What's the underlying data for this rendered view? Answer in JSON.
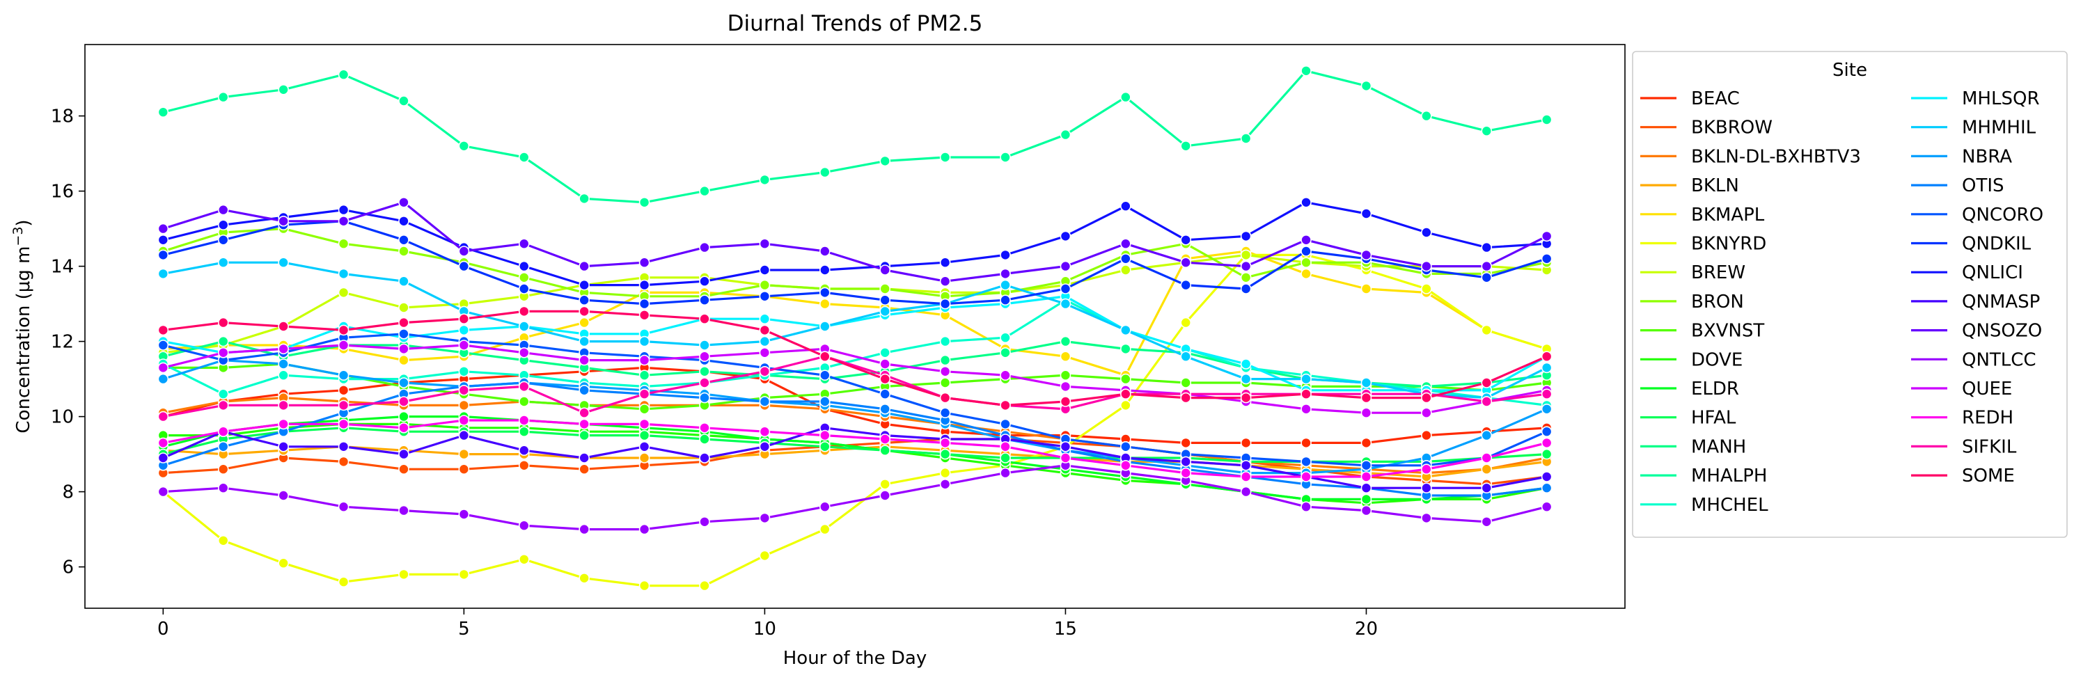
{
  "chart_data": {
    "type": "line",
    "title": "Diurnal Trends of PM2.5",
    "xlabel": "Hour of the Day",
    "ylabel_prefix": "Concentration (μg m",
    "ylabel_sup": "−3",
    "ylabel_suffix": ")",
    "xlim": [
      -1.3,
      24.3
    ],
    "ylim": [
      4.9,
      19.9
    ],
    "xticks": [
      0,
      5,
      10,
      15,
      20
    ],
    "yticks": [
      6,
      8,
      10,
      12,
      14,
      16,
      18
    ],
    "grid": false,
    "legend": {
      "title": "Site",
      "placement": "outside-right",
      "columns": 2
    },
    "x": [
      0,
      1,
      2,
      3,
      4,
      5,
      6,
      7,
      8,
      9,
      10,
      11,
      12,
      13,
      14,
      15,
      16,
      17,
      18,
      19,
      20,
      21,
      22,
      23
    ],
    "series": [
      {
        "name": "BEAC",
        "color": "#ff2a00",
        "values": [
          10.0,
          10.4,
          10.6,
          10.7,
          10.9,
          11.0,
          11.1,
          11.2,
          11.3,
          11.2,
          11.0,
          10.2,
          9.8,
          9.6,
          9.5,
          9.5,
          9.4,
          9.3,
          9.3,
          9.3,
          9.3,
          9.5,
          9.6,
          9.7
        ]
      },
      {
        "name": "BKBROW",
        "color": "#ff4f00",
        "values": [
          8.5,
          8.6,
          8.9,
          8.8,
          8.6,
          8.6,
          8.7,
          8.6,
          8.7,
          8.8,
          9.1,
          9.2,
          9.3,
          9.4,
          9.4,
          9.3,
          9.2,
          9.0,
          8.8,
          8.6,
          8.4,
          8.3,
          8.2,
          8.4
        ]
      },
      {
        "name": "BKLN-DL-BXHBTV3",
        "color": "#ff7a00",
        "values": [
          10.1,
          10.4,
          10.5,
          10.4,
          10.3,
          10.3,
          10.4,
          10.3,
          10.3,
          10.3,
          10.3,
          10.2,
          10.0,
          9.8,
          9.6,
          9.4,
          9.2,
          9.0,
          8.8,
          8.7,
          8.6,
          8.5,
          8.6,
          8.9
        ]
      },
      {
        "name": "BKLN",
        "color": "#ffaa00",
        "values": [
          9.1,
          9.0,
          9.1,
          9.2,
          9.1,
          9.0,
          9.0,
          8.9,
          8.9,
          8.9,
          9.0,
          9.1,
          9.2,
          9.1,
          9.0,
          8.9,
          8.8,
          8.8,
          8.7,
          8.6,
          8.5,
          8.4,
          8.6,
          8.8
        ]
      },
      {
        "name": "BKMAPL",
        "color": "#ffe100",
        "values": [
          11.8,
          11.9,
          11.9,
          11.8,
          11.5,
          11.6,
          12.1,
          12.5,
          13.3,
          13.3,
          13.2,
          13.0,
          12.9,
          12.7,
          11.8,
          11.6,
          11.1,
          14.2,
          14.4,
          13.8,
          13.4,
          13.3,
          12.3,
          11.8
        ]
      },
      {
        "name": "BKNYRD",
        "color": "#eeff00",
        "values": [
          8.0,
          6.7,
          6.1,
          5.6,
          5.8,
          5.8,
          6.2,
          5.7,
          5.5,
          5.5,
          6.3,
          7.0,
          8.2,
          8.5,
          8.7,
          9.2,
          10.3,
          12.5,
          14.3,
          14.3,
          13.9,
          13.4,
          12.3,
          11.8
        ]
      },
      {
        "name": "BREW",
        "color": "#c8ff00",
        "values": [
          11.7,
          11.9,
          12.4,
          13.3,
          12.9,
          13.0,
          13.2,
          13.5,
          13.7,
          13.7,
          13.5,
          13.4,
          13.4,
          13.3,
          13.3,
          13.5,
          13.9,
          14.1,
          14.3,
          14.1,
          14.0,
          14.0,
          14.0,
          13.9
        ]
      },
      {
        "name": "BRON",
        "color": "#8fff00",
        "values": [
          14.4,
          14.9,
          15.0,
          14.6,
          14.4,
          14.1,
          13.7,
          13.3,
          13.2,
          13.2,
          13.5,
          13.4,
          13.4,
          13.2,
          13.3,
          13.6,
          14.3,
          14.6,
          13.7,
          14.1,
          14.1,
          13.8,
          13.8,
          14.1
        ]
      },
      {
        "name": "BXVNST",
        "color": "#55ff00",
        "values": [
          11.3,
          11.3,
          11.4,
          11.1,
          10.8,
          10.6,
          10.4,
          10.3,
          10.2,
          10.3,
          10.5,
          10.6,
          10.8,
          10.9,
          11.0,
          11.1,
          11.0,
          10.9,
          10.9,
          10.8,
          10.8,
          10.8,
          10.7,
          10.9
        ]
      },
      {
        "name": "DOVE",
        "color": "#22ff00",
        "values": [
          9.5,
          9.5,
          9.7,
          9.8,
          9.8,
          9.7,
          9.7,
          9.6,
          9.6,
          9.5,
          9.4,
          9.3,
          9.1,
          8.9,
          8.7,
          8.5,
          8.3,
          8.2,
          8.0,
          7.8,
          7.7,
          7.8,
          7.8,
          8.1
        ]
      },
      {
        "name": "ELDR",
        "color": "#00ff22",
        "values": [
          9.2,
          9.6,
          9.8,
          9.9,
          10.0,
          10.0,
          9.9,
          9.8,
          9.7,
          9.6,
          9.4,
          9.3,
          9.1,
          9.0,
          8.8,
          8.6,
          8.4,
          8.2,
          8.0,
          7.8,
          7.8,
          7.8,
          7.9,
          8.1
        ]
      },
      {
        "name": "HFAL",
        "color": "#00ff55",
        "values": [
          9.0,
          9.4,
          9.6,
          9.7,
          9.6,
          9.6,
          9.6,
          9.5,
          9.5,
          9.4,
          9.3,
          9.2,
          9.1,
          9.0,
          8.9,
          8.9,
          8.9,
          8.9,
          8.8,
          8.8,
          8.8,
          8.8,
          8.9,
          9.0
        ]
      },
      {
        "name": "MANH",
        "color": "#00ff88",
        "values": [
          11.6,
          12.0,
          11.6,
          11.9,
          11.9,
          11.7,
          11.5,
          11.3,
          11.1,
          11.2,
          11.1,
          11.0,
          11.2,
          11.5,
          11.7,
          12.0,
          11.8,
          11.7,
          11.3,
          11.0,
          10.9,
          10.8,
          10.9,
          11.1
        ]
      },
      {
        "name": "MHALPH",
        "color": "#00ff9c",
        "values": [
          18.1,
          18.5,
          18.7,
          19.1,
          18.4,
          17.2,
          16.9,
          15.8,
          15.7,
          16.0,
          16.3,
          16.5,
          16.8,
          16.9,
          16.9,
          17.5,
          18.5,
          17.2,
          17.4,
          19.2,
          18.8,
          18.0,
          17.6,
          17.9
        ]
      },
      {
        "name": "MHCHEL",
        "color": "#00ffcc",
        "values": [
          11.4,
          10.6,
          11.1,
          11.0,
          11.0,
          11.2,
          11.1,
          10.9,
          10.8,
          10.9,
          11.1,
          11.3,
          11.7,
          12.0,
          12.1,
          13.1,
          12.3,
          11.8,
          11.3,
          11.1,
          10.9,
          10.7,
          10.5,
          10.3
        ]
      },
      {
        "name": "MHLSQR",
        "color": "#00f2ff",
        "values": [
          12.0,
          11.7,
          11.8,
          12.4,
          12.1,
          12.3,
          12.4,
          12.2,
          12.2,
          12.6,
          12.6,
          12.4,
          12.7,
          12.9,
          13.0,
          13.2,
          12.3,
          11.8,
          11.4,
          10.7,
          10.7,
          10.7,
          10.7,
          11.6
        ]
      },
      {
        "name": "MHMHIL",
        "color": "#00ccff",
        "values": [
          13.8,
          14.1,
          14.1,
          13.8,
          13.6,
          12.8,
          12.4,
          12.0,
          12.0,
          11.9,
          12.0,
          12.4,
          12.8,
          13.0,
          13.5,
          13.0,
          12.3,
          11.6,
          11.0,
          11.0,
          10.9,
          10.6,
          10.5,
          11.3
        ]
      },
      {
        "name": "NBRA",
        "color": "#00a0ff",
        "values": [
          11.0,
          11.5,
          11.4,
          11.1,
          10.9,
          10.8,
          10.9,
          10.8,
          10.7,
          10.6,
          10.4,
          10.3,
          10.1,
          9.8,
          9.4,
          9.1,
          8.9,
          8.7,
          8.5,
          8.5,
          8.6,
          8.9,
          9.5,
          10.2
        ]
      },
      {
        "name": "OTIS",
        "color": "#0080ff",
        "values": [
          8.7,
          9.2,
          9.6,
          10.1,
          10.6,
          10.8,
          10.9,
          10.7,
          10.6,
          10.5,
          10.4,
          10.4,
          10.2,
          9.9,
          9.5,
          9.1,
          8.8,
          8.6,
          8.4,
          8.2,
          8.1,
          7.9,
          7.9,
          8.1
        ]
      },
      {
        "name": "QNCORO",
        "color": "#0055ff",
        "values": [
          11.9,
          11.5,
          11.7,
          12.1,
          12.2,
          12.0,
          11.9,
          11.7,
          11.6,
          11.5,
          11.3,
          11.1,
          10.6,
          10.1,
          9.8,
          9.4,
          9.2,
          9.0,
          8.9,
          8.8,
          8.7,
          8.7,
          8.9,
          9.6
        ]
      },
      {
        "name": "QNDKIL",
        "color": "#0033ff",
        "values": [
          14.3,
          14.7,
          15.1,
          15.2,
          14.7,
          14.0,
          13.4,
          13.1,
          13.0,
          13.1,
          13.2,
          13.3,
          13.1,
          13.0,
          13.1,
          13.4,
          14.2,
          13.5,
          13.4,
          14.4,
          14.2,
          13.9,
          13.7,
          14.2
        ]
      },
      {
        "name": "QNLICI",
        "color": "#1010ff",
        "values": [
          14.7,
          15.1,
          15.3,
          15.5,
          15.2,
          14.5,
          14.0,
          13.5,
          13.5,
          13.6,
          13.9,
          13.9,
          14.0,
          14.1,
          14.3,
          14.8,
          15.6,
          14.7,
          14.8,
          15.7,
          15.4,
          14.9,
          14.5,
          14.6
        ]
      },
      {
        "name": "QNMASP",
        "color": "#4400ff",
        "values": [
          8.9,
          9.6,
          9.2,
          9.2,
          9.0,
          9.5,
          9.1,
          8.9,
          9.2,
          8.9,
          9.2,
          9.7,
          9.5,
          9.4,
          9.4,
          9.2,
          8.9,
          8.8,
          8.7,
          8.4,
          8.1,
          8.1,
          8.1,
          8.4
        ]
      },
      {
        "name": "QNSOZO",
        "color": "#6600ff",
        "values": [
          15.0,
          15.5,
          15.2,
          15.2,
          15.7,
          14.4,
          14.6,
          14.0,
          14.1,
          14.5,
          14.6,
          14.4,
          13.9,
          13.6,
          13.8,
          14.0,
          14.6,
          14.1,
          14.0,
          14.7,
          14.3,
          14.0,
          14.0,
          14.8
        ]
      },
      {
        "name": "QNTLCC",
        "color": "#9900ff",
        "values": [
          8.0,
          8.1,
          7.9,
          7.6,
          7.5,
          7.4,
          7.1,
          7.0,
          7.0,
          7.2,
          7.3,
          7.6,
          7.9,
          8.2,
          8.5,
          8.7,
          8.5,
          8.3,
          8.0,
          7.6,
          7.5,
          7.3,
          7.2,
          7.6
        ]
      },
      {
        "name": "QUEE",
        "color": "#cc00ff",
        "values": [
          11.3,
          11.7,
          11.8,
          11.9,
          11.8,
          11.9,
          11.7,
          11.5,
          11.5,
          11.6,
          11.7,
          11.8,
          11.4,
          11.2,
          11.1,
          10.8,
          10.7,
          10.6,
          10.4,
          10.2,
          10.1,
          10.1,
          10.4,
          10.7
        ]
      },
      {
        "name": "REDH",
        "color": "#ff00ee",
        "values": [
          9.3,
          9.6,
          9.8,
          9.8,
          9.7,
          9.9,
          9.9,
          9.8,
          9.8,
          9.7,
          9.6,
          9.5,
          9.4,
          9.3,
          9.2,
          8.9,
          8.7,
          8.5,
          8.4,
          8.4,
          8.4,
          8.6,
          8.9,
          9.3
        ]
      },
      {
        "name": "SIFKIL",
        "color": "#ff00aa",
        "values": [
          10.0,
          10.3,
          10.3,
          10.3,
          10.4,
          10.7,
          10.8,
          10.1,
          10.6,
          10.9,
          11.2,
          11.6,
          11.1,
          10.5,
          10.3,
          10.2,
          10.6,
          10.6,
          10.6,
          10.6,
          10.6,
          10.6,
          10.4,
          10.6
        ]
      },
      {
        "name": "SOME",
        "color": "#ff0066",
        "values": [
          12.3,
          12.5,
          12.4,
          12.3,
          12.5,
          12.6,
          12.8,
          12.8,
          12.7,
          12.6,
          12.3,
          11.6,
          11.0,
          10.5,
          10.3,
          10.4,
          10.6,
          10.5,
          10.5,
          10.6,
          10.5,
          10.5,
          10.9,
          11.6
        ]
      }
    ]
  }
}
